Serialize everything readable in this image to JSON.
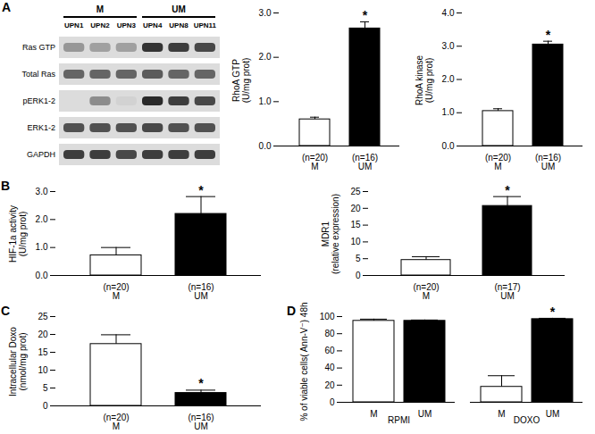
{
  "chart_data": [
    {
      "type": "bar",
      "ylabel": "RhoA GTP\n(U/mg prot)",
      "categories": [
        "M",
        "UM"
      ],
      "values": [
        0.6,
        2.65
      ],
      "errors": [
        0.05,
        0.15
      ],
      "colors": [
        "#ffffff",
        "#000000"
      ],
      "n_labels": [
        "(n=20)",
        "(n=16)"
      ],
      "annotations": [
        {
          "category": "UM",
          "text": "*"
        }
      ],
      "ylim": [
        0,
        3
      ],
      "yticks": [
        0,
        1,
        2,
        3
      ]
    },
    {
      "type": "bar",
      "ylabel": "RhoA kinase\n(U/mg prot)",
      "categories": [
        "M",
        "UM"
      ],
      "values": [
        1.05,
        3.05
      ],
      "errors": [
        0.07,
        0.1
      ],
      "colors": [
        "#ffffff",
        "#000000"
      ],
      "n_labels": [
        "(n=20)",
        "(n=16)"
      ],
      "annotations": [
        {
          "category": "UM",
          "text": "*"
        }
      ],
      "ylim": [
        0,
        4
      ],
      "yticks": [
        0,
        1,
        2,
        3,
        4
      ]
    },
    {
      "panel": "B",
      "type": "bar",
      "ylabel": "HIF-1a activity\n(U/mg prot)",
      "categories": [
        "M",
        "UM"
      ],
      "values": [
        0.72,
        2.2
      ],
      "errors": [
        0.28,
        0.62
      ],
      "colors": [
        "#ffffff",
        "#000000"
      ],
      "n_labels": [
        "(n=20)",
        "(n=16)"
      ],
      "annotations": [
        {
          "category": "UM",
          "text": "*"
        }
      ],
      "ylim": [
        0,
        3
      ],
      "yticks": [
        0,
        1,
        2,
        3
      ]
    },
    {
      "type": "bar",
      "ylabel": "MDR1\n(relative expression)",
      "categories": [
        "M",
        "UM"
      ],
      "values": [
        4.6,
        20.7
      ],
      "errors": [
        1,
        2.8
      ],
      "colors": [
        "#ffffff",
        "#000000"
      ],
      "n_labels": [
        "(n=20)",
        "(n=17)"
      ],
      "annotations": [
        {
          "category": "UM",
          "text": "*"
        }
      ],
      "ylim": [
        0,
        25
      ],
      "yticks": [
        0,
        5,
        10,
        15,
        20,
        25
      ]
    },
    {
      "panel": "C",
      "type": "bar",
      "ylabel": "Intracellular Doxo\n(nmol/mg prot)",
      "categories": [
        "M",
        "UM"
      ],
      "values": [
        17.3,
        3.6
      ],
      "errors": [
        2.6,
        0.8
      ],
      "colors": [
        "#ffffff",
        "#000000"
      ],
      "n_labels": [
        "(n=20)",
        "(n=16)"
      ],
      "annotations": [
        {
          "category": "UM",
          "text": "*"
        }
      ],
      "ylim": [
        0,
        25
      ],
      "yticks": [
        0,
        5,
        10,
        15,
        20,
        25
      ]
    },
    {
      "panel": "D",
      "type": "bar",
      "ylabel": "% of viable cells( Ann-V⁻) 48h",
      "categories": [
        "RPMI",
        "DOXO"
      ],
      "series": [
        {
          "name": "M",
          "color": "#ffffff",
          "values": [
            95,
            18
          ],
          "errors": [
            2,
            13
          ]
        },
        {
          "name": "UM",
          "color": "#000000",
          "values": [
            95,
            97
          ],
          "errors": [
            1,
            1
          ]
        }
      ],
      "annotations": [
        {
          "category": "DOXO",
          "series": "UM",
          "text": "*"
        }
      ],
      "ylim": [
        0,
        100
      ],
      "yticks": [
        0,
        20,
        40,
        60,
        80,
        100
      ]
    }
  ],
  "blot": {
    "panel": "A",
    "groups": [
      {
        "name": "M",
        "lanes": [
          "UPN1",
          "UPN2",
          "UPN3"
        ]
      },
      {
        "name": "UM",
        "lanes": [
          "UPN4",
          "UPN8",
          "UPN11"
        ]
      }
    ],
    "rows": [
      "Ras GTP",
      "Total Ras",
      "pERK1-2",
      "ERK1-2",
      "GAPDH"
    ],
    "band_intensity": [
      [
        0.35,
        0.3,
        0.3,
        0.85,
        0.8,
        0.75
      ],
      [
        0.6,
        0.6,
        0.6,
        0.65,
        0.6,
        0.6
      ],
      [
        0.0,
        0.4,
        0.05,
        0.9,
        0.8,
        0.75
      ],
      [
        0.7,
        0.7,
        0.7,
        0.75,
        0.7,
        0.7
      ],
      [
        0.8,
        0.8,
        0.75,
        0.8,
        0.8,
        0.8
      ]
    ]
  }
}
